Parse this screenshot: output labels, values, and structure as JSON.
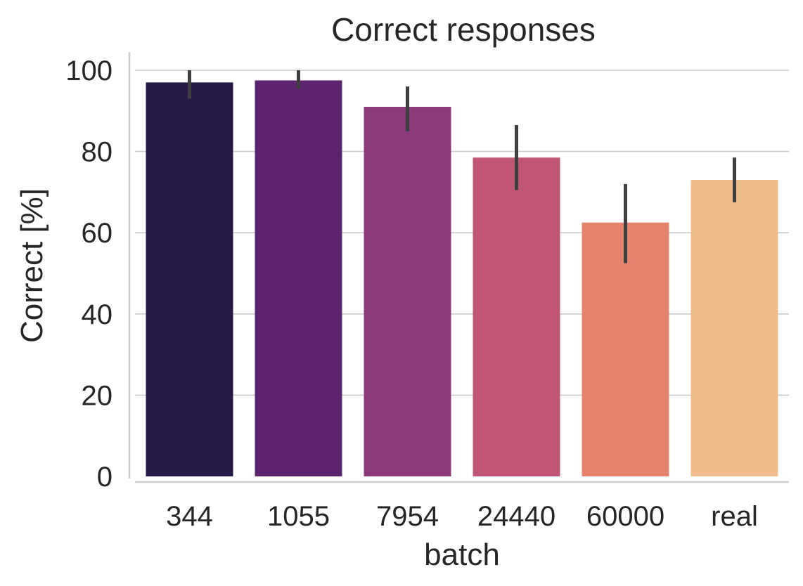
{
  "chart_data": {
    "type": "bar",
    "title": "Correct responses",
    "xlabel": "batch",
    "ylabel": "Correct [%]",
    "categories": [
      "344",
      "1055",
      "7954",
      "24440",
      "60000",
      "real"
    ],
    "values": [
      97,
      97.5,
      91,
      78.5,
      62.5,
      73
    ],
    "error_low": [
      93,
      95.5,
      85,
      70.5,
      52.5,
      67.5
    ],
    "error_high": [
      100,
      100,
      96,
      86.5,
      72,
      78.5
    ],
    "colors": [
      "#271a48",
      "#5c246e",
      "#8a3a7a",
      "#c05674",
      "#e5836e",
      "#f0bc8c"
    ],
    "ylim": [
      0,
      104.5
    ],
    "yticks": [
      "0",
      "20",
      "40",
      "60",
      "80",
      "100"
    ],
    "grid": "y",
    "error_color": "#3f3f3f",
    "grid_color": "#cccccc",
    "spine_color": "#cccccc"
  }
}
